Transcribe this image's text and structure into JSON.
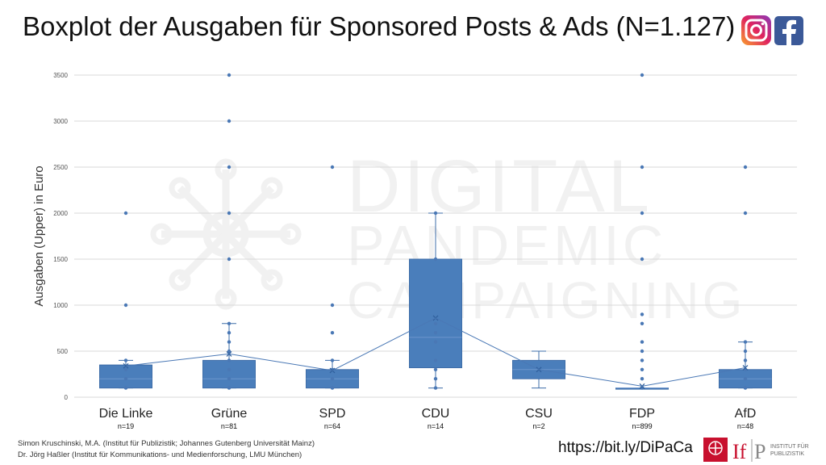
{
  "title": "Boxplot der Ausgaben für Sponsored Posts & Ads (N=1.127)",
  "logos": [
    "instagram-icon",
    "facebook-icon"
  ],
  "footer": {
    "author_line1": "Simon Kruschinski, M.A. (Institut für Publizistik; Johannes Gutenberg Universität Mainz)",
    "author_line2": "Dr. Jörg Haßler (Institut für Kommunikations- und Medienforschung, LMU München)",
    "url": "https://bit.ly/DiPaCa",
    "institute_logo_text": "If",
    "institute_logo_p": "P",
    "institute_name_1": "INSTITUT FÜR",
    "institute_name_2": "PUBLIZISTIK"
  },
  "watermark": [
    "DIGITAL",
    "PANDEMIC",
    "CAMPAIGNING"
  ],
  "colors": {
    "box": "#4a7ebb",
    "box_edge": "#3e6da8",
    "grid": "#d9d9d9",
    "watermark": "#f1f1f1"
  },
  "chart_data": {
    "type": "box",
    "ylabel": "Ausgaben (Upper) in Euro",
    "ylim": [
      0,
      3500
    ],
    "yticks": [
      0,
      500,
      1000,
      1500,
      2000,
      2500,
      3000,
      3500
    ],
    "grid": true,
    "categories": [
      "Die Linke",
      "Grüne",
      "SPD",
      "CDU",
      "CSU",
      "FDP",
      "AfD"
    ],
    "counts": [
      "n=19",
      "n=81",
      "n=64",
      "n=14",
      "n=2",
      "n=899",
      "n=48"
    ],
    "boxes": [
      {
        "q1": 100,
        "median": 200,
        "q3": 350,
        "whisker_low": 100,
        "whisker_high": 400,
        "mean": 340,
        "points": [
          100,
          200,
          300,
          400,
          1000,
          2000
        ]
      },
      {
        "q1": 100,
        "median": 200,
        "q3": 400,
        "whisker_low": 100,
        "whisker_high": 800,
        "mean": 470,
        "points": [
          100,
          200,
          300,
          400,
          500,
          600,
          700,
          800,
          1500,
          2000,
          2500,
          3000,
          3500
        ]
      },
      {
        "q1": 100,
        "median": 200,
        "q3": 300,
        "whisker_low": 100,
        "whisker_high": 400,
        "mean": 290,
        "points": [
          100,
          200,
          300,
          400,
          700,
          1000,
          2500
        ]
      },
      {
        "q1": 320,
        "median": 650,
        "q3": 1500,
        "whisker_low": 100,
        "whisker_high": 2000,
        "mean": 860,
        "points": [
          100,
          200,
          300,
          400,
          600,
          700,
          800,
          1500,
          2000
        ]
      },
      {
        "q1": 200,
        "median": 300,
        "q3": 400,
        "whisker_low": 100,
        "whisker_high": 500,
        "mean": 300,
        "points": []
      },
      {
        "q1": 100,
        "median": 100,
        "q3": 100,
        "whisker_low": 100,
        "whisker_high": 100,
        "mean": 120,
        "points": [
          100,
          200,
          300,
          400,
          500,
          600,
          800,
          900,
          1500,
          2000,
          2500,
          3500
        ]
      },
      {
        "q1": 100,
        "median": 200,
        "q3": 300,
        "whisker_low": 100,
        "whisker_high": 600,
        "mean": 320,
        "points": [
          100,
          200,
          300,
          400,
          500,
          600,
          2000,
          2500
        ]
      }
    ]
  }
}
